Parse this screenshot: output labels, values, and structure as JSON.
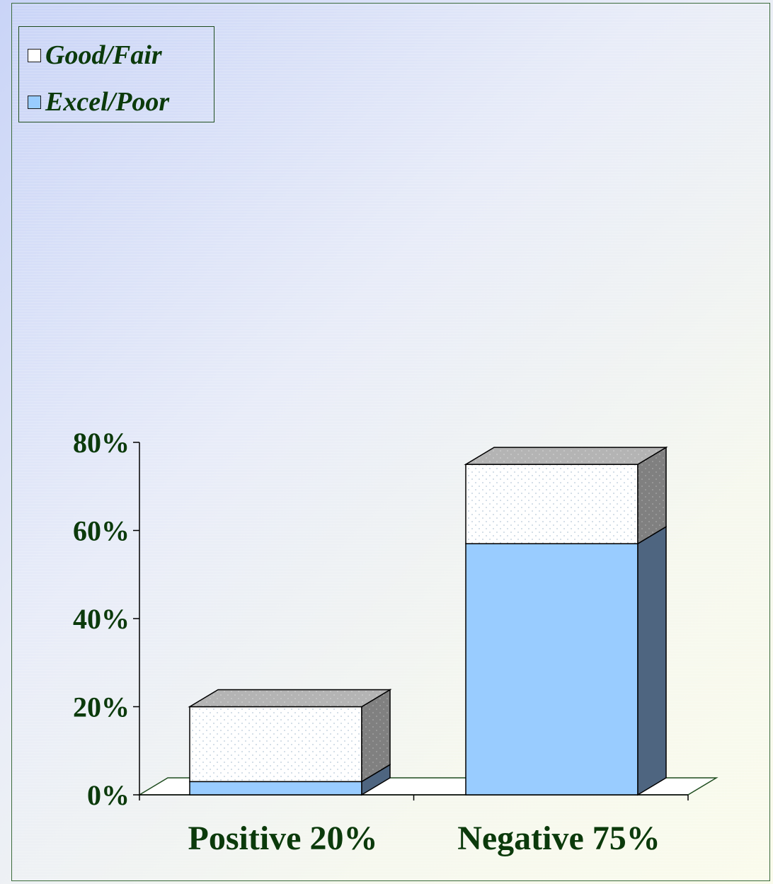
{
  "chart_data": {
    "type": "bar",
    "stacked": true,
    "three_d": true,
    "categories": [
      "Positive 20%",
      "Negative 75%"
    ],
    "series": [
      {
        "name": "Excel/Poor",
        "values": [
          3,
          57
        ],
        "color": "#99ccff",
        "side_color": "#4e6580"
      },
      {
        "name": "Good/Fair",
        "values": [
          17,
          18
        ],
        "color": "#ffffff",
        "side_color": "#808080",
        "pattern": "dotted"
      }
    ],
    "ylim": [
      0,
      80
    ],
    "yticks": [
      0,
      20,
      40,
      60,
      80
    ],
    "ytick_labels": [
      "0%",
      "20%",
      "40%",
      "60%",
      "80%"
    ],
    "legend_position": "top-left",
    "text_color": "#0b3a0b"
  },
  "legend": {
    "items": [
      {
        "label": "Good/Fair",
        "color": "#ffffff"
      },
      {
        "label": "Excel/Poor",
        "color": "#99ccff"
      }
    ]
  }
}
